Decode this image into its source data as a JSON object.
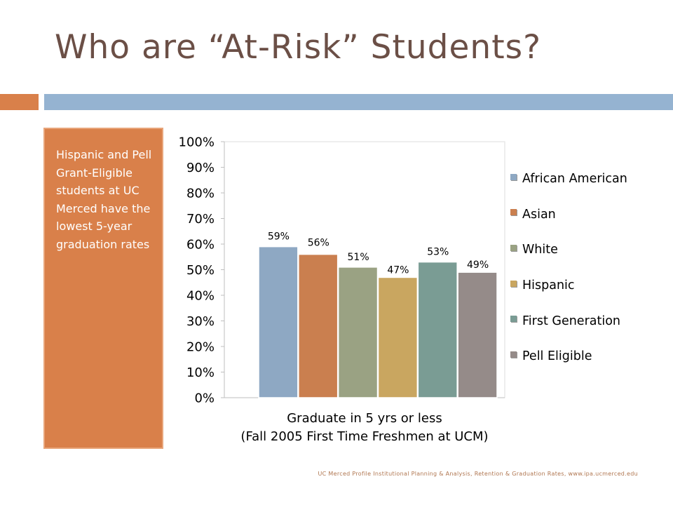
{
  "slide": {
    "title": "Who are “At-Risk” Students?",
    "side_text": "Hispanic and Pell Grant-Eligible students at UC Merced have the lowest 5-year graduation rates",
    "source": "UC Merced Profile Institutional Planning & Analysis, Retention & Graduation Rates, www.ipa.ucmerced.edu"
  },
  "colors": {
    "title": "#6b4f46",
    "accent_orange": "#d9804a",
    "accent_blue": "#95b3d1"
  },
  "chart_data": {
    "type": "bar",
    "title": "",
    "xlabel": "Graduate in 5 yrs or less",
    "xlabel_line2": "(Fall 2005 First Time Freshmen at UCM)",
    "ylabel": "",
    "ylim": [
      0,
      100
    ],
    "yticks": [
      "0%",
      "10%",
      "20%",
      "30%",
      "40%",
      "50%",
      "60%",
      "70%",
      "80%",
      "90%",
      "100%"
    ],
    "grid": false,
    "legend_position": "right",
    "categories": [
      "Graduate in 5 yrs or less"
    ],
    "series": [
      {
        "name": "African American",
        "values": [
          59
        ],
        "label": "59%",
        "color": "#8ea8c3"
      },
      {
        "name": "Asian",
        "values": [
          56
        ],
        "label": "56%",
        "color": "#ca7f4f"
      },
      {
        "name": "White",
        "values": [
          51
        ],
        "label": "51%",
        "color": "#9aa283"
      },
      {
        "name": "Hispanic",
        "values": [
          47
        ],
        "label": "47%",
        "color": "#c9a660"
      },
      {
        "name": "First Generation",
        "values": [
          53
        ],
        "label": "53%",
        "color": "#7a9c94"
      },
      {
        "name": "Pell Eligible",
        "values": [
          49
        ],
        "label": "49%",
        "color": "#958b89"
      }
    ]
  }
}
